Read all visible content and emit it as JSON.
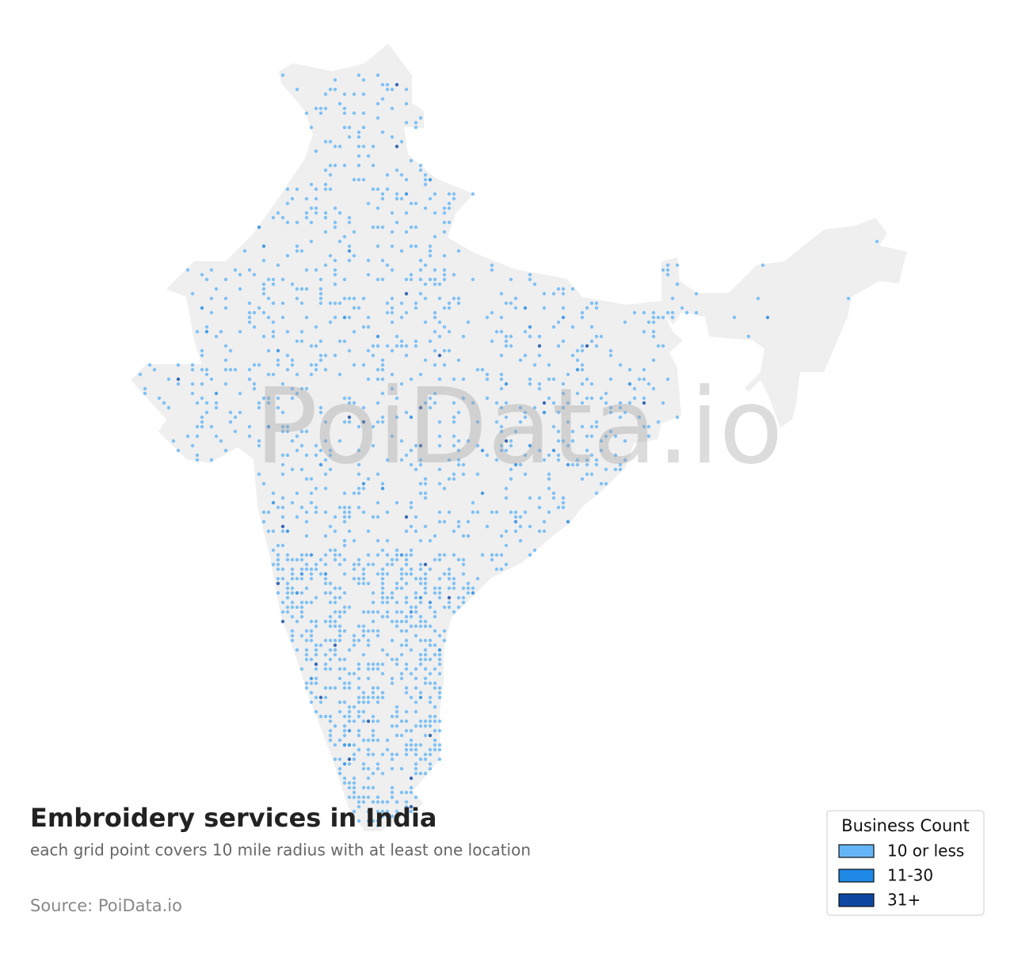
{
  "title": "Embroidery services in India",
  "subtitle": "each grid point covers 10 mile radius with at least one location",
  "source": "Source: PoiData.io",
  "watermark": "PoiData.io",
  "legend": {
    "title": "Business Count",
    "items": [
      {
        "label": "10 or less",
        "color": "#64b5f6"
      },
      {
        "label": "11-30",
        "color": "#1e88e5"
      },
      {
        "label": "31+",
        "color": "#0d47a1"
      }
    ]
  }
}
